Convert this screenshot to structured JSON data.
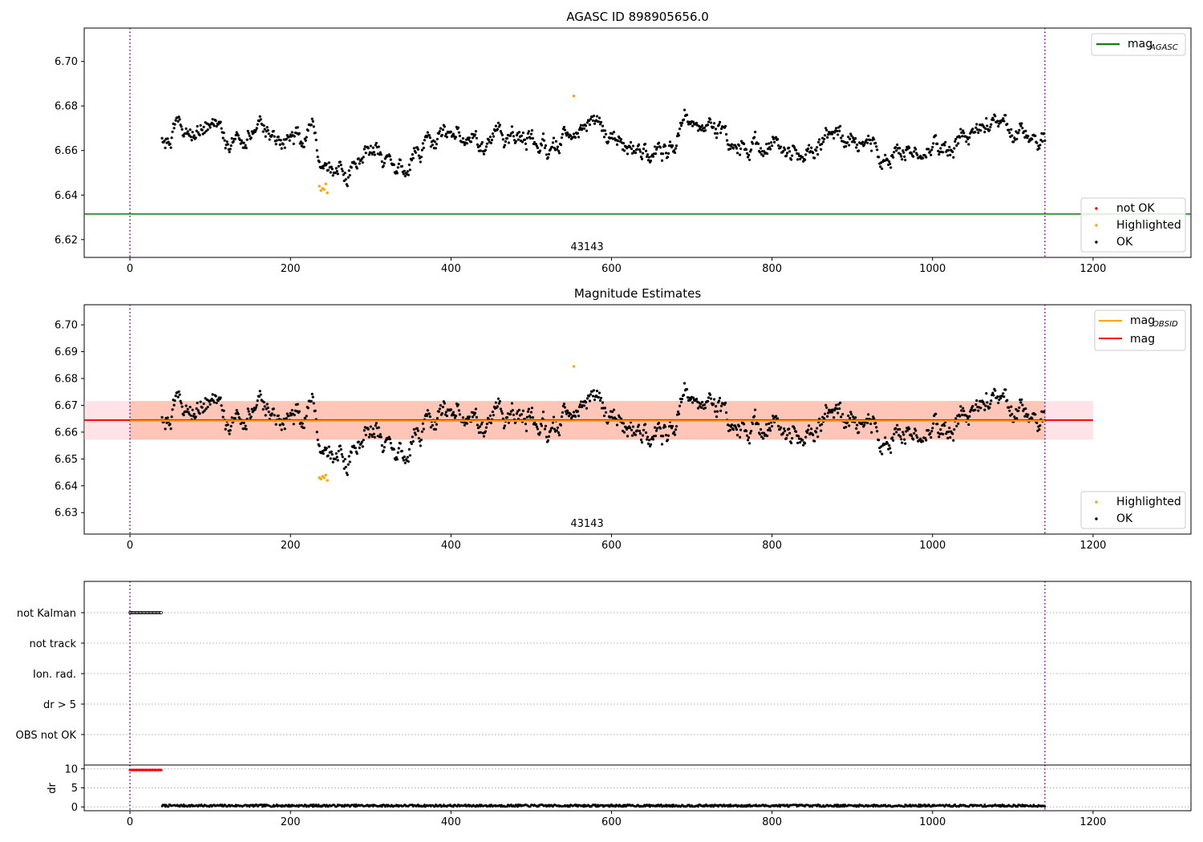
{
  "chart_data": [
    {
      "type": "scatter",
      "title": "AGASC ID 898905656.0",
      "xlim": [
        -57,
        1322
      ],
      "ylim": [
        6.612,
        6.715
      ],
      "xticks": [
        0,
        200,
        400,
        600,
        800,
        1000,
        1200
      ],
      "yticks": [
        6.62,
        6.64,
        6.66,
        6.68,
        6.7
      ],
      "annotation": "43143",
      "annotation_x": 570,
      "vlines": [
        0,
        1140
      ],
      "hlines": [
        {
          "name": "mag",
          "subscript": "AGASC",
          "y": 6.6315,
          "color": "#008000"
        }
      ],
      "series": [
        {
          "name": "not OK",
          "color": "#ff0000",
          "count": 0
        },
        {
          "name": "Highlighted",
          "color": "#ffa500",
          "points": [
            [
              236,
              6.644
            ],
            [
              238,
              6.642
            ],
            [
              240,
              6.643
            ],
            [
              242,
              6.6425
            ],
            [
              244,
              6.645
            ],
            [
              246,
              6.641
            ],
            [
              553,
              6.6845
            ]
          ]
        },
        {
          "name": "OK",
          "color": "#000000",
          "x_range": [
            40,
            1140
          ]
        }
      ],
      "legends": {
        "top_right": [
          {
            "label": "mag",
            "sub": "AGASC",
            "kind": "line",
            "color": "#008000"
          }
        ],
        "bottom_right": [
          {
            "label": "not OK",
            "kind": "dot",
            "color": "#ff0000"
          },
          {
            "label": "Highlighted",
            "kind": "dot",
            "color": "#ffa500"
          },
          {
            "label": "OK",
            "kind": "dot",
            "color": "#000000"
          }
        ]
      }
    },
    {
      "type": "scatter",
      "title": "Magnitude Estimates",
      "xlim": [
        -57,
        1322
      ],
      "ylim": [
        6.622,
        6.7075
      ],
      "xticks": [
        0,
        200,
        400,
        600,
        800,
        1000,
        1200
      ],
      "yticks": [
        6.63,
        6.64,
        6.65,
        6.66,
        6.67,
        6.68,
        6.69,
        6.7
      ],
      "annotation": "43143",
      "annotation_x": 570,
      "vlines": [
        0,
        1140
      ],
      "hlines": [
        {
          "name": "mag",
          "subscript": "OBSID",
          "y": 6.6642,
          "color": "#ffa500",
          "x_range": [
            0,
            1140
          ],
          "band": [
            6.6572,
            6.6716
          ],
          "band_color": "#ffa07a"
        },
        {
          "name": "mag",
          "y": 6.6645,
          "color": "#ff0000",
          "x_range": [
            -57,
            1200
          ],
          "band": [
            6.6572,
            6.6716
          ],
          "band_color": "#ffc0cb"
        }
      ],
      "series": [
        {
          "name": "Highlighted",
          "color": "#ffa500",
          "points": [
            [
              236,
              6.643
            ],
            [
              238,
              6.6425
            ],
            [
              240,
              6.6435
            ],
            [
              242,
              6.643
            ],
            [
              244,
              6.644
            ],
            [
              246,
              6.642
            ],
            [
              553,
              6.6845
            ]
          ]
        },
        {
          "name": "OK",
          "color": "#000000",
          "x_range": [
            40,
            1140
          ]
        }
      ],
      "legends": {
        "top_right": [
          {
            "label": "mag",
            "sub": "OBSID",
            "kind": "line",
            "color": "#ffa500"
          },
          {
            "label": "mag",
            "sub": "",
            "kind": "line",
            "color": "#ff0000"
          }
        ],
        "bottom_right": [
          {
            "label": "Highlighted",
            "kind": "dot",
            "color": "#ffa500"
          },
          {
            "label": "OK",
            "kind": "dot",
            "color": "#000000"
          }
        ]
      }
    },
    {
      "type": "scatter",
      "title": "",
      "xlim": [
        -57,
        1322
      ],
      "category_labels": [
        "not Kalman",
        "not track",
        "Ion. rad.",
        "dr > 5",
        "OBS not OK"
      ],
      "flag_rows": [
        {
          "label": "not Kalman",
          "x_range": [
            0,
            40
          ]
        },
        {
          "label": "not track",
          "x_range": []
        },
        {
          "label": "Ion. rad.",
          "x_range": []
        },
        {
          "label": "dr > 5",
          "x_range": []
        },
        {
          "label": "OBS not OK",
          "x_range": []
        }
      ],
      "vlines": [
        0,
        1140
      ]
    },
    {
      "type": "scatter",
      "title": "",
      "ylabel": "dr",
      "xlim": [
        -57,
        1322
      ],
      "ylim": [
        -1,
        11
      ],
      "xticks": [
        0,
        200,
        400,
        600,
        800,
        1000,
        1200
      ],
      "yticks": [
        0,
        5,
        10
      ],
      "vlines": [
        0,
        1140
      ],
      "series": [
        {
          "name": "dr not OK",
          "color": "#ff0000",
          "x_range": [
            0,
            40
          ],
          "y": 9.7
        },
        {
          "name": "dr OK",
          "color": "#000000",
          "x_range": [
            40,
            1140
          ],
          "y_range": [
            0.05,
            0.6
          ]
        }
      ]
    }
  ],
  "colors": {
    "ok": "#000000",
    "highlighted": "#ffa500",
    "not_ok": "#ff0000",
    "agasc_line": "#008000",
    "vline": "#800080",
    "grid": "#b0b0b0"
  }
}
